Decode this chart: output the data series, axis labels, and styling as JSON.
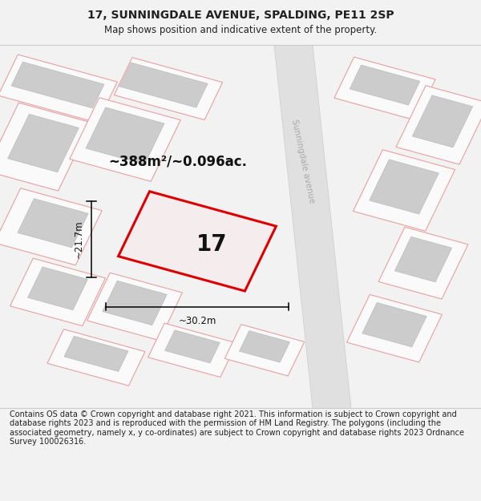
{
  "title": "17, SUNNINGDALE AVENUE, SPALDING, PE11 2SP",
  "subtitle": "Map shows position and indicative extent of the property.",
  "footer": "Contains OS data © Crown copyright and database right 2021. This information is subject to Crown copyright and database rights 2023 and is reproduced with the permission of HM Land Registry. The polygons (including the associated geometry, namely x, y co-ordinates) are subject to Crown copyright and database rights 2023 Ordnance Survey 100026316.",
  "area_label": "~388m²/~0.096ac.",
  "width_label": "~30.2m",
  "height_label": "~21.7m",
  "plot_number": "17",
  "road_label": "Sunningdale avenue",
  "plot_color": "#dd0000",
  "plot_fill": "#f5eded",
  "building_fill": "#cccccc",
  "building_edge": "#bbbbbb",
  "road_fill": "#e0e0e0",
  "road_edge": "#cccccc",
  "parcel_stroke": "#e8a0a0",
  "parcel_fill": "#fafafa",
  "bg_color": "#f2f2f2",
  "map_bg": "#f8f8f8",
  "title_fontsize": 10,
  "subtitle_fontsize": 8.5,
  "footer_fontsize": 7,
  "area_fontsize": 12,
  "plot_num_fontsize": 20,
  "dim_fontsize": 8.5,
  "road_fontsize": 7.5
}
